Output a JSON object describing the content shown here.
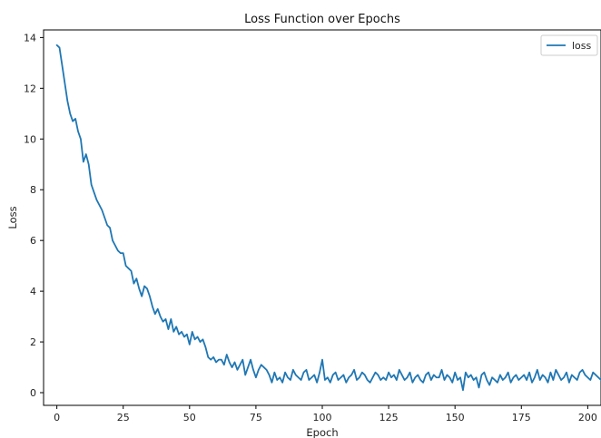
{
  "chart_data": {
    "type": "line",
    "title": "Loss Function over Epochs",
    "xlabel": "Epoch",
    "ylabel": "Loss",
    "xlim": [
      -5,
      205
    ],
    "ylim": [
      -0.5,
      14.3
    ],
    "x_ticks": [
      0,
      25,
      50,
      75,
      100,
      125,
      150,
      175,
      200
    ],
    "y_ticks": [
      0,
      2,
      4,
      6,
      8,
      10,
      12,
      14
    ],
    "grid": false,
    "legend": {
      "placement": "top-right",
      "entries": [
        "loss"
      ]
    },
    "series": [
      {
        "name": "loss",
        "color": "#1f77b4",
        "values": [
          13.7,
          13.6,
          12.9,
          12.2,
          11.5,
          11.0,
          10.7,
          10.8,
          10.3,
          10.0,
          9.1,
          9.4,
          9.0,
          8.2,
          7.9,
          7.6,
          7.4,
          7.2,
          6.9,
          6.6,
          6.5,
          6.0,
          5.8,
          5.6,
          5.5,
          5.5,
          5.0,
          4.9,
          4.8,
          4.3,
          4.5,
          4.1,
          3.8,
          4.2,
          4.1,
          3.8,
          3.4,
          3.1,
          3.3,
          3.0,
          2.8,
          2.9,
          2.5,
          2.9,
          2.4,
          2.6,
          2.3,
          2.4,
          2.2,
          2.3,
          1.9,
          2.4,
          2.1,
          2.2,
          2.0,
          2.1,
          1.8,
          1.4,
          1.3,
          1.4,
          1.2,
          1.3,
          1.3,
          1.1,
          1.5,
          1.2,
          1.0,
          1.2,
          0.9,
          1.1,
          1.3,
          0.7,
          1.0,
          1.3,
          0.9,
          0.6,
          0.9,
          1.1,
          1.0,
          0.9,
          0.7,
          0.4,
          0.8,
          0.5,
          0.6,
          0.4,
          0.8,
          0.6,
          0.5,
          0.9,
          0.7,
          0.6,
          0.5,
          0.8,
          0.9,
          0.5,
          0.6,
          0.7,
          0.4,
          0.8,
          1.3,
          0.5,
          0.6,
          0.4,
          0.7,
          0.8,
          0.5,
          0.6,
          0.7,
          0.4,
          0.6,
          0.7,
          0.9,
          0.5,
          0.6,
          0.8,
          0.7,
          0.5,
          0.4,
          0.6,
          0.8,
          0.7,
          0.5,
          0.6,
          0.5,
          0.8,
          0.6,
          0.7,
          0.5,
          0.9,
          0.7,
          0.5,
          0.6,
          0.8,
          0.4,
          0.6,
          0.7,
          0.5,
          0.4,
          0.7,
          0.8,
          0.5,
          0.7,
          0.6,
          0.6,
          0.9,
          0.5,
          0.7,
          0.6,
          0.4,
          0.8,
          0.5,
          0.6,
          0.1,
          0.8,
          0.6,
          0.7,
          0.5,
          0.6,
          0.2,
          0.7,
          0.8,
          0.5,
          0.3,
          0.6,
          0.5,
          0.4,
          0.7,
          0.5,
          0.6,
          0.8,
          0.4,
          0.6,
          0.7,
          0.5,
          0.6,
          0.7,
          0.5,
          0.8,
          0.4,
          0.6,
          0.9,
          0.5,
          0.7,
          0.6,
          0.4,
          0.8,
          0.5,
          0.9,
          0.7,
          0.5,
          0.6,
          0.8,
          0.4,
          0.7,
          0.6,
          0.5,
          0.8,
          0.9,
          0.7,
          0.6,
          0.5,
          0.8,
          0.7,
          0.6,
          0.5,
          0.8
        ]
      }
    ]
  }
}
